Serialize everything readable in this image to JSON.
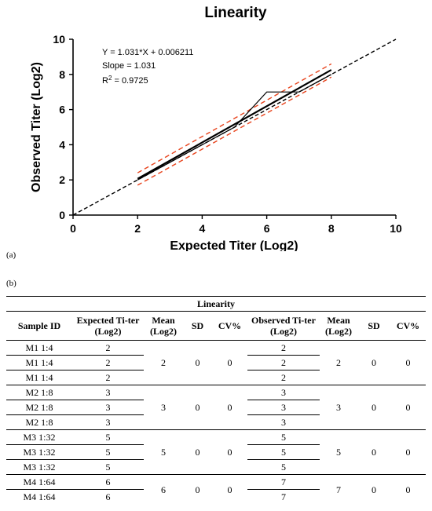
{
  "panel_labels": {
    "a": "(a)",
    "b": "(b)"
  },
  "chart_data": {
    "type": "line",
    "title": "Linearity",
    "xlabel": "Expected Titer (Log2)",
    "ylabel": "Observed Titer (Log2)",
    "xlim": [
      0,
      10
    ],
    "ylim": [
      0,
      10
    ],
    "xticks": [
      "0",
      "2",
      "4",
      "6",
      "8",
      "10"
    ],
    "yticks": [
      "0",
      "2",
      "4",
      "6",
      "8",
      "10"
    ],
    "annotations": [
      "Y = 1.031*X + 0.006211",
      "Slope = 1.031",
      "R² = 0.9725"
    ],
    "series": [
      {
        "role": "observed",
        "color": "#000000",
        "x": [
          2,
          3,
          5,
          6,
          7,
          8
        ],
        "y": [
          2,
          3,
          5,
          7,
          7,
          8
        ]
      },
      {
        "role": "fit",
        "color": "#000000",
        "x": [
          2,
          8
        ],
        "y": [
          2.068,
          8.254
        ]
      },
      {
        "role": "ci-upper",
        "color": "#e8431c",
        "dashed": true,
        "x": [
          2,
          8
        ],
        "y": [
          2.4,
          8.6
        ]
      },
      {
        "role": "ci-lower",
        "color": "#e8431c",
        "dashed": true,
        "x": [
          2,
          8
        ],
        "y": [
          1.7,
          7.85
        ]
      },
      {
        "role": "identity",
        "color": "#000000",
        "dashed": true,
        "x": [
          0,
          10
        ],
        "y": [
          0,
          10
        ]
      }
    ]
  },
  "table": {
    "caption": "Linearity",
    "headers": [
      "Sample ID",
      "Expected Ti-ter (Log2)",
      "Mean (Log2)",
      "SD",
      "CV%",
      "Observed Ti-ter (Log2)",
      "Mean (Log2)",
      "SD",
      "CV%"
    ],
    "groups": [
      {
        "rows": [
          {
            "id": "M1 1:4",
            "exp": "2",
            "obs": "2"
          },
          {
            "id": "M1 1:4",
            "exp": "2",
            "obs": "2"
          },
          {
            "id": "M1 1:4",
            "exp": "2",
            "obs": "2"
          }
        ],
        "exp_mean": "2",
        "exp_sd": "0",
        "exp_cv": "0",
        "obs_mean": "2",
        "obs_sd": "0",
        "obs_cv": "0"
      },
      {
        "rows": [
          {
            "id": "M2 1:8",
            "exp": "3",
            "obs": "3"
          },
          {
            "id": "M2 1:8",
            "exp": "3",
            "obs": "3"
          },
          {
            "id": "M2 1:8",
            "exp": "3",
            "obs": "3"
          }
        ],
        "exp_mean": "3",
        "exp_sd": "0",
        "exp_cv": "0",
        "obs_mean": "3",
        "obs_sd": "0",
        "obs_cv": "0"
      },
      {
        "rows": [
          {
            "id": "M3 1:32",
            "exp": "5",
            "obs": "5"
          },
          {
            "id": "M3 1:32",
            "exp": "5",
            "obs": "5"
          },
          {
            "id": "M3 1:32",
            "exp": "5",
            "obs": "5"
          }
        ],
        "exp_mean": "5",
        "exp_sd": "0",
        "exp_cv": "0",
        "obs_mean": "5",
        "obs_sd": "0",
        "obs_cv": "0"
      },
      {
        "rows": [
          {
            "id": "M4 1:64",
            "exp": "6",
            "obs": "7"
          },
          {
            "id": "M4 1:64",
            "exp": "6",
            "obs": "7"
          }
        ],
        "exp_mean": "6",
        "exp_sd": "0",
        "exp_cv": "0",
        "obs_mean": "7",
        "obs_sd": "0",
        "obs_cv": "0"
      }
    ]
  }
}
